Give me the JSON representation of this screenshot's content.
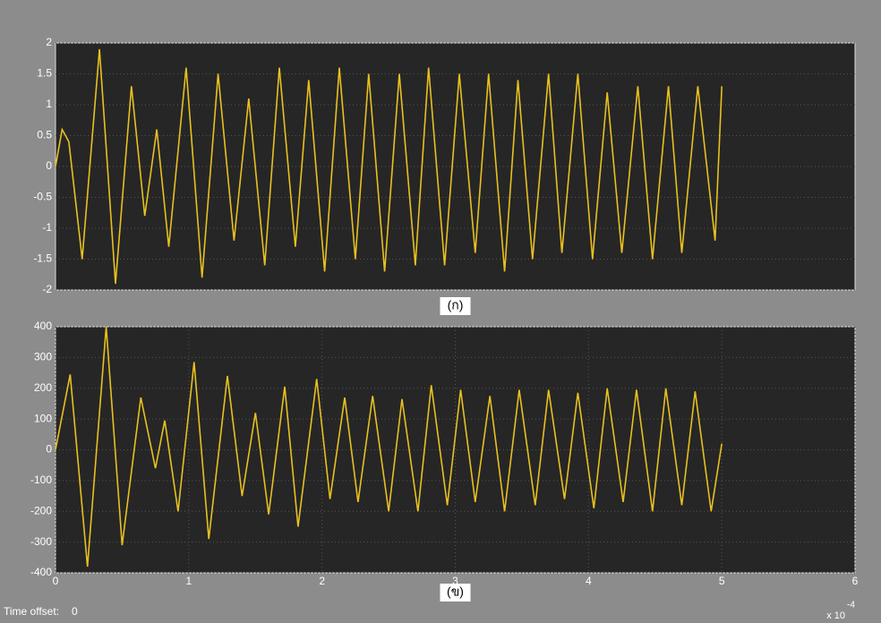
{
  "chart_data": [
    {
      "type": "line",
      "caption": "(ก)",
      "x": [
        0,
        0.05,
        0.1,
        0.2,
        0.33,
        0.45,
        0.57,
        0.67,
        0.76,
        0.85,
        0.98,
        1.1,
        1.22,
        1.34,
        1.45,
        1.57,
        1.68,
        1.8,
        1.9,
        2.02,
        2.13,
        2.25,
        2.35,
        2.47,
        2.58,
        2.7,
        2.8,
        2.92,
        3.03,
        3.15,
        3.25,
        3.37,
        3.47,
        3.58,
        3.7,
        3.8,
        3.92,
        4.03,
        4.14,
        4.25,
        4.37,
        4.48,
        4.6,
        4.7,
        4.82,
        4.95,
        5.0
      ],
      "series": [
        {
          "color": "#e8c020",
          "values": [
            0,
            0.6,
            0.4,
            -1.5,
            1.9,
            -1.9,
            1.3,
            -0.8,
            0.6,
            -1.3,
            1.6,
            -1.8,
            1.5,
            -1.2,
            1.1,
            -1.6,
            1.6,
            -1.3,
            1.4,
            -1.7,
            1.6,
            -1.5,
            1.5,
            -1.7,
            1.5,
            -1.6,
            1.6,
            -1.6,
            1.5,
            -1.4,
            1.5,
            -1.7,
            1.4,
            -1.5,
            1.5,
            -1.4,
            1.5,
            -1.5,
            1.2,
            -1.4,
            1.3,
            -1.5,
            1.3,
            -1.4,
            1.3,
            -1.2,
            1.3
          ]
        }
      ],
      "xlim": [
        0,
        6
      ],
      "ylim": [
        -2,
        2
      ],
      "yticks": [
        2,
        1.5,
        1,
        0.5,
        0,
        -0.5,
        -1,
        -1.5,
        -2
      ],
      "grid": true
    },
    {
      "type": "line",
      "caption": "(ข)",
      "x": [
        0,
        0.11,
        0.24,
        0.38,
        0.5,
        0.64,
        0.75,
        0.82,
        0.92,
        1.04,
        1.15,
        1.29,
        1.4,
        1.5,
        1.6,
        1.72,
        1.82,
        1.96,
        2.06,
        2.17,
        2.27,
        2.38,
        2.5,
        2.6,
        2.72,
        2.82,
        2.94,
        3.04,
        3.15,
        3.26,
        3.37,
        3.48,
        3.6,
        3.7,
        3.82,
        3.92,
        4.04,
        4.14,
        4.26,
        4.36,
        4.48,
        4.58,
        4.7,
        4.8,
        4.92,
        5.0
      ],
      "series": [
        {
          "color": "#e8c020",
          "values": [
            0,
            245,
            -380,
            400,
            -310,
            170,
            -60,
            95,
            -200,
            285,
            -290,
            240,
            -150,
            120,
            -210,
            205,
            -250,
            230,
            -160,
            170,
            -170,
            175,
            -200,
            165,
            -200,
            210,
            -180,
            195,
            -170,
            175,
            -200,
            195,
            -180,
            195,
            -160,
            185,
            -190,
            200,
            -170,
            195,
            -200,
            200,
            -180,
            190,
            -200,
            20
          ]
        }
      ],
      "xlim": [
        0,
        6
      ],
      "ylim": [
        -400,
        400
      ],
      "xticks": [
        0,
        1,
        2,
        3,
        4,
        5,
        6
      ],
      "yticks": [
        400,
        300,
        200,
        100,
        0,
        -100,
        -200,
        -300,
        -400
      ],
      "grid": true,
      "x_scale_label": "x 10",
      "x_scale_exponent": "-4"
    }
  ],
  "footer": {
    "label": "Time offset:",
    "value": "0"
  }
}
